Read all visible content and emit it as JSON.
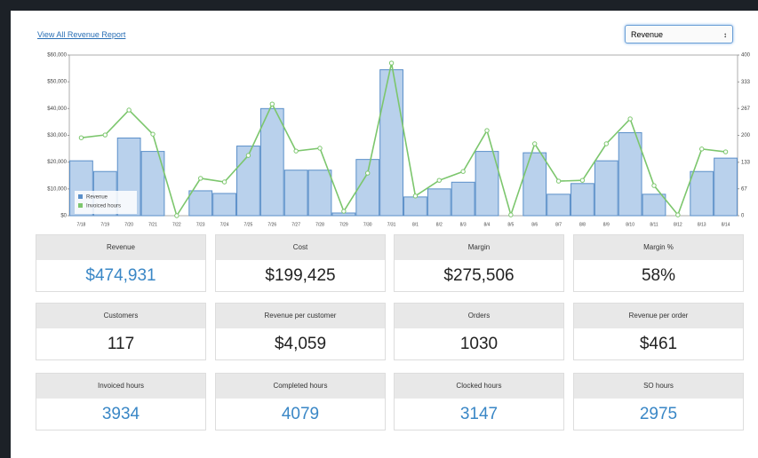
{
  "header": {
    "link": "View All Revenue Report",
    "select": "Revenue"
  },
  "chart_data": {
    "type": "bar-line",
    "categories": [
      "7/18",
      "7/19",
      "7/20",
      "7/21",
      "7/22",
      "7/23",
      "7/24",
      "7/25",
      "7/26",
      "7/27",
      "7/28",
      "7/29",
      "7/30",
      "7/31",
      "8/1",
      "8/2",
      "8/3",
      "8/4",
      "8/5",
      "8/6",
      "8/7",
      "8/8",
      "8/9",
      "8/10",
      "8/11",
      "8/12",
      "8/13",
      "8/14"
    ],
    "series": [
      {
        "name": "Revenue",
        "type": "bar",
        "color": "#b9d1ec",
        "stroke": "#5a8fc9",
        "values": [
          20500,
          16500,
          29000,
          24000,
          0,
          9300,
          8300,
          26000,
          40000,
          17000,
          17000,
          1000,
          21000,
          54500,
          7000,
          10000,
          12500,
          24000,
          0,
          23500,
          8000,
          12000,
          20500,
          31000,
          8000,
          0,
          16500,
          21500
        ]
      },
      {
        "name": "Invoiced hours",
        "type": "line",
        "axis": "y2",
        "color": "#7cc66d",
        "values": [
          194,
          201,
          263,
          203,
          0,
          93,
          84,
          150,
          278,
          161,
          168,
          11,
          106,
          380,
          49,
          88,
          110,
          212,
          2,
          179,
          86,
          88,
          179,
          241,
          75,
          2,
          166,
          159
        ]
      }
    ],
    "ylim": [
      0,
      60000
    ],
    "yticks": [
      {
        "value": 0,
        "label": "$0"
      },
      {
        "value": 10000,
        "label": "$10,000"
      },
      {
        "value": 20000,
        "label": "$20,000"
      },
      {
        "value": 30000,
        "label": "$30,000"
      },
      {
        "value": 40000,
        "label": "$40,000"
      },
      {
        "value": 50000,
        "label": "$50,000"
      },
      {
        "value": 60000,
        "label": "$60,000"
      }
    ],
    "y2lim": [
      0,
      400
    ],
    "y2ticks": [
      0,
      67,
      133,
      200,
      267,
      333,
      400
    ],
    "legend": "lower-left"
  },
  "cards": [
    {
      "label": "Revenue",
      "value": "$474,931"
    },
    {
      "label": "Cost",
      "value": "$199,425"
    },
    {
      "label": "Margin",
      "value": "$275,506"
    },
    {
      "label": "Margin %",
      "value": "58%"
    },
    {
      "label": "Customers",
      "value": "117"
    },
    {
      "label": "Revenue per customer",
      "value": "$4,059"
    },
    {
      "label": "Orders",
      "value": "1030"
    },
    {
      "label": "Revenue per order",
      "value": "$461"
    },
    {
      "label": "Invoiced hours",
      "value": "3934"
    },
    {
      "label": "Completed hours",
      "value": "4079"
    },
    {
      "label": "Clocked hours",
      "value": "3147"
    },
    {
      "label": "SO hours",
      "value": "2975"
    }
  ]
}
